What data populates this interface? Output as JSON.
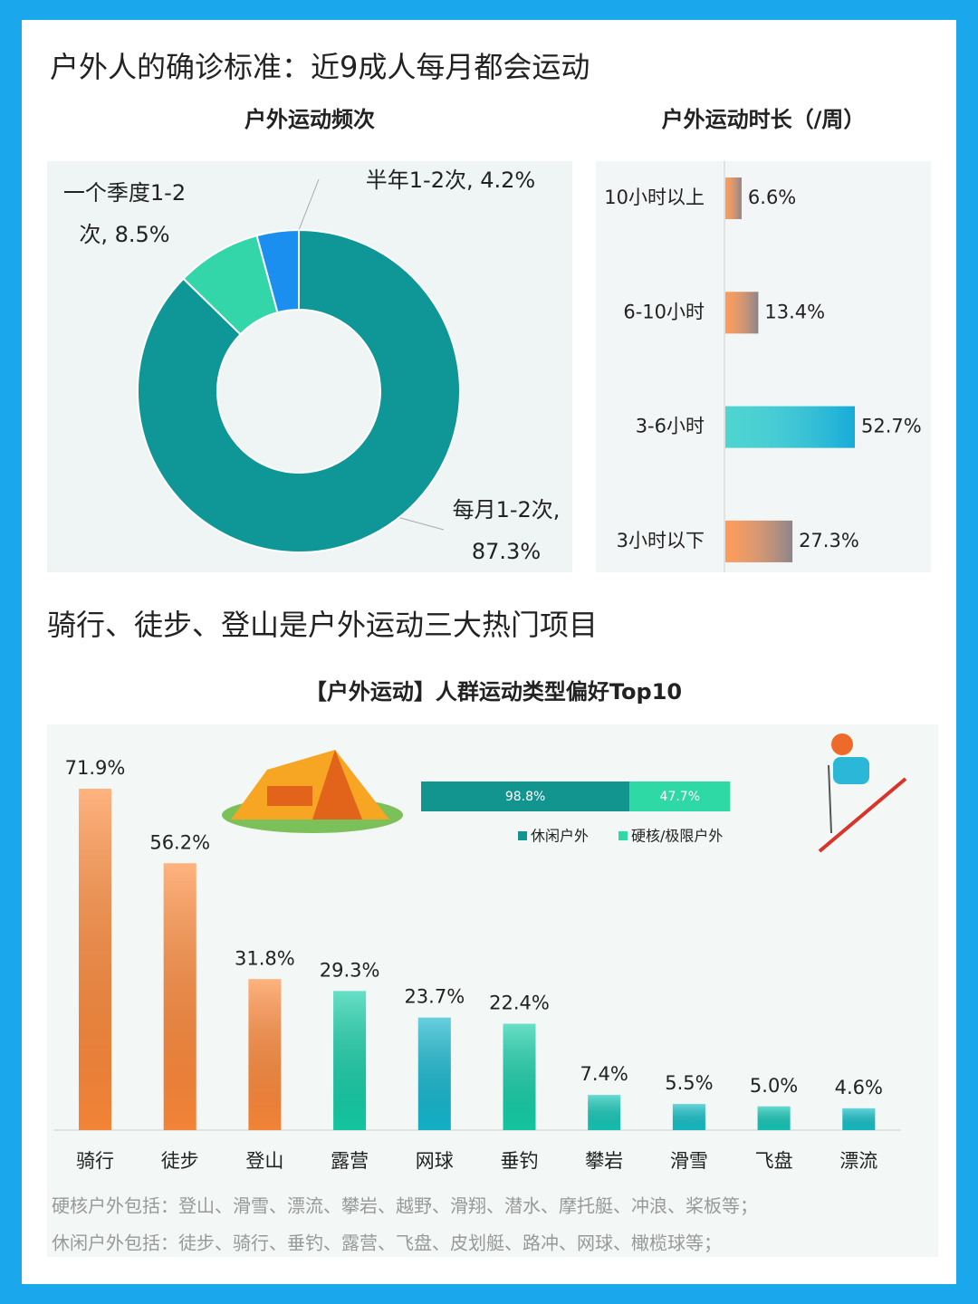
{
  "headings": [
    "户外人的确诊标准：近9成人每月都会运动",
    "骑行、徒步、登山是户外运动三大热门项目"
  ],
  "chart_data": [
    {
      "type": "donut",
      "title": "户外运动频次",
      "values": [
        87.3,
        8.5,
        4.2
      ],
      "value_labels": [
        "每月1-2次, 87.3%",
        "一个季度1-2次, 8.5%",
        "半年1-2次, 4.2%"
      ],
      "colors": [
        "#0f9696",
        "#33d6a8",
        "#1a8ff0"
      ]
    },
    {
      "type": "hbar",
      "title": "户外运动时长（/周）",
      "categories": [
        "10小时以上",
        "6-10小时",
        "3-6小时",
        "3小时以下"
      ],
      "values": [
        6.6,
        13.4,
        52.7,
        27.3
      ],
      "value_labels": [
        "6.6%",
        "13.4%",
        "52.7%",
        "27.3%"
      ],
      "colors": [
        "#ff7a22",
        "#ff7a22",
        "#12c7c0",
        "#ff7a22"
      ]
    },
    {
      "type": "bar",
      "title": "【户外运动】人群运动类型偏好Top10",
      "categories": [
        "骑行",
        "徒步",
        "登山",
        "露营",
        "网球",
        "垂钓",
        "攀岩",
        "滑雪",
        "飞盘",
        "漂流"
      ],
      "values": [
        71.9,
        56.2,
        31.8,
        29.3,
        23.7,
        22.4,
        7.4,
        5.5,
        5.0,
        4.6
      ],
      "value_labels": [
        "71.9%",
        "56.2%",
        "31.8%",
        "29.3%",
        "23.7%",
        "22.4%",
        "7.4%",
        "5.5%",
        "5.0%",
        "4.6%"
      ],
      "colors": [
        "#ff8a3a",
        "#ff8a3a",
        "#ff8a3a",
        "#15cfa8",
        "#15b8d0",
        "#15cfa8",
        "#15c8b8",
        "#15c0c8",
        "#15c8b8",
        "#15c0c8"
      ],
      "notes": [
        "硬核户外包括：登山、滑雪、漂流、攀岩、越野、滑翔、潜水、摩托艇、冲浪、桨板等；",
        "休闲户外包括：徒步、骑行、垂钓、露营、飞盘、皮划艇、路冲、网球、橄榄球等；"
      ]
    },
    {
      "type": "stacked-hbar",
      "series": [
        {
          "name": "休闲户外",
          "color": "#12948f",
          "values": [
            98.8
          ],
          "value_labels": [
            "98.8%"
          ]
        },
        {
          "name": "硬核/极限户外",
          "color": "#2fd9a6",
          "values": [
            47.7
          ],
          "value_labels": [
            "47.7%"
          ]
        }
      ]
    }
  ]
}
